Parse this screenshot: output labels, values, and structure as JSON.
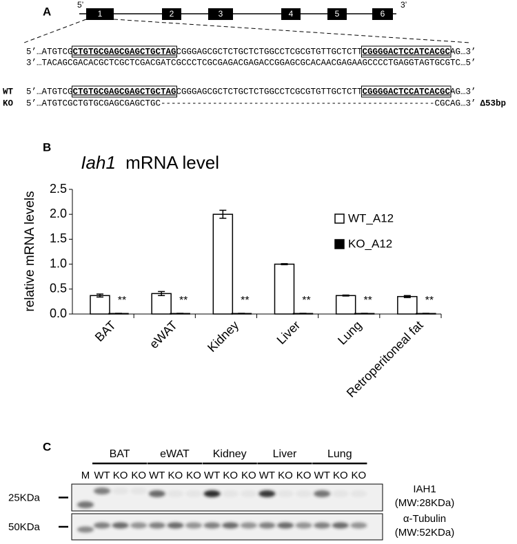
{
  "panel_a": {
    "label": "A",
    "gene": {
      "five_prime": "5’",
      "three_prime": "3’",
      "exons": [
        "1",
        "2",
        "3",
        "4",
        "5",
        "6"
      ]
    },
    "sequences": [
      {
        "parts": [
          {
            "text": "5’…ATGTCG"
          },
          {
            "text": "CTGTGCGAGCGAGCTGCTAG",
            "boxed": true
          },
          {
            "text": "CGGGAGCGCTCTGCTCTGGCCTCGCGTGTTGCTCTT"
          },
          {
            "text": "CGGGGACTCCATCACGC",
            "boxed": true
          },
          {
            "text": "AG…3’"
          }
        ]
      },
      {
        "parts": [
          {
            "text": "3’…TACAGCGACACGCTCGCTCGACGATCGCCCTCGCGAGACGAGACCGGAGCGCACAACGAGAAGCCCCTGAGGTAGTGCGTC…5’"
          }
        ]
      },
      {
        "label": "WT",
        "parts": [
          {
            "text": "5’…ATGTCG"
          },
          {
            "text": "CTGTGCGAGCGAGCTGCTAG",
            "boxed": true
          },
          {
            "text": "CGGGAGCGCTCTGCTCTGGCCTCGCGTGTTGCTCTT"
          },
          {
            "text": "CGGGGACTCCATCACGC",
            "boxed": true
          },
          {
            "text": "AG…3’"
          }
        ]
      },
      {
        "label": "KO",
        "parts": [
          {
            "text": "5’…ATGTCGCTGTGCGAGCGAGCTGC-----------------------------------------------------CGCAG…3’"
          }
        ],
        "note": "Δ53bp"
      }
    ]
  },
  "panel_b": {
    "label": "B"
  },
  "chart_data": {
    "type": "bar",
    "title": {
      "gene": "Iah1",
      "text": "mRNA level"
    },
    "ylabel": "relative mRNA levels",
    "categories": [
      "BAT",
      "eWAT",
      "Kidney",
      "Liver",
      "Lung",
      "Retroperitoneal fat"
    ],
    "series": [
      {
        "name": "WT_A12",
        "color": "#ffffff",
        "edgecolor": "#000000",
        "values": [
          0.37,
          0.41,
          2.0,
          1.0,
          0.37,
          0.35
        ],
        "errors": [
          0.03,
          0.04,
          0.08,
          0.01,
          0.01,
          0.02
        ]
      },
      {
        "name": "KO_A12",
        "color": "#000000",
        "edgecolor": "#000000",
        "values": [
          0.01,
          0.01,
          0.01,
          0.01,
          0.01,
          0.01
        ],
        "errors": [
          0.003,
          0.003,
          0.003,
          0.003,
          0.003,
          0.003
        ]
      }
    ],
    "significance": [
      "**",
      "**",
      "**",
      "**",
      "**",
      "**"
    ],
    "ylim": [
      0,
      2.5
    ],
    "yticks": [
      {
        "value": 0,
        "label": "0.0"
      },
      0.5,
      {
        "value": 1,
        "label": "1.0"
      },
      1.5,
      {
        "value": 2,
        "label": "2.0"
      },
      2.5
    ],
    "grid": false,
    "legend": "right"
  },
  "panel_c": {
    "label": "C",
    "groups": [
      "BAT",
      "eWAT",
      "Kidney",
      "Liver",
      "Lung"
    ],
    "lanes": [
      "M",
      "WT",
      "KO",
      "KO",
      "WT",
      "KO",
      "KO",
      "WT",
      "KO",
      "KO",
      "WT",
      "KO",
      "KO",
      "WT",
      "KO",
      "KO"
    ],
    "markers": [
      "25KDa",
      "50KDa"
    ],
    "blots": [
      {
        "name": "IAH1",
        "mw": "(MW:28KDa)"
      },
      {
        "name": "α-Tubulin",
        "mw": "(MW:52KDa)"
      }
    ]
  }
}
